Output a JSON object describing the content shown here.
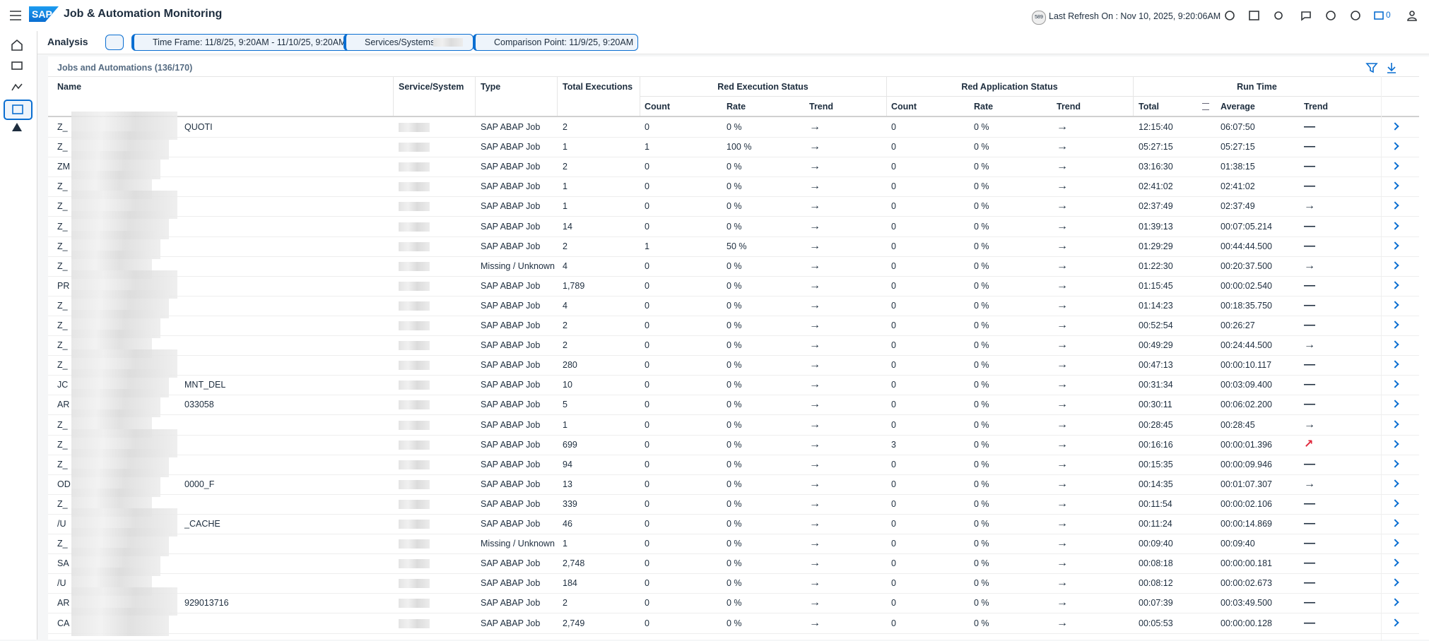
{
  "header": {
    "logo": "SAP",
    "title": "Job & Automation Monitoring",
    "badge": "589",
    "last_refresh": "Last Refresh On : Nov 10, 2025, 9:20:06AM",
    "notifications": "0"
  },
  "filter_bar": {
    "title": "Analysis",
    "tokens": [
      "Time Frame: 11/8/25, 9:20AM - 11/10/25, 9:20AM",
      "Services/Systems:",
      "Comparison Point: 11/9/25, 9:20AM"
    ]
  },
  "table": {
    "title": "Jobs and Automations (136/170)",
    "groups": [
      "Red Execution Status",
      "Red Application Status",
      "Run Time"
    ],
    "columns": [
      "Name",
      "Service/System",
      "Type",
      "Total Executions",
      "Count",
      "Rate",
      "Trend",
      "Count",
      "Rate",
      "Trend",
      "Total",
      "Average",
      "Trend"
    ],
    "rows": [
      {
        "name": "Z_",
        "name_end": "QUOTI",
        "type": "SAP ABAP Job",
        "total": "2",
        "ex_count": "0",
        "ex_rate": "0 %",
        "ex_trend": "→",
        "app_count": "0",
        "app_rate": "0 %",
        "app_trend": "→",
        "rt_total": "12:15:40",
        "rt_avg": "06:07:50",
        "rt_trend": "—"
      },
      {
        "name": "Z_",
        "type": "SAP ABAP Job",
        "total": "1",
        "ex_count": "1",
        "ex_rate": "100 %",
        "ex_trend": "→",
        "app_count": "0",
        "app_rate": "0 %",
        "app_trend": "→",
        "rt_total": "05:27:15",
        "rt_avg": "05:27:15",
        "rt_trend": "—"
      },
      {
        "name": "ZM",
        "type": "SAP ABAP Job",
        "total": "2",
        "ex_count": "0",
        "ex_rate": "0 %",
        "ex_trend": "→",
        "app_count": "0",
        "app_rate": "0 %",
        "app_trend": "→",
        "rt_total": "03:16:30",
        "rt_avg": "01:38:15",
        "rt_trend": "—"
      },
      {
        "name": "Z_",
        "type": "SAP ABAP Job",
        "total": "1",
        "ex_count": "0",
        "ex_rate": "0 %",
        "ex_trend": "→",
        "app_count": "0",
        "app_rate": "0 %",
        "app_trend": "→",
        "rt_total": "02:41:02",
        "rt_avg": "02:41:02",
        "rt_trend": "—"
      },
      {
        "name": "Z_",
        "type": "SAP ABAP Job",
        "total": "1",
        "ex_count": "0",
        "ex_rate": "0 %",
        "ex_trend": "→",
        "app_count": "0",
        "app_rate": "0 %",
        "app_trend": "→",
        "rt_total": "02:37:49",
        "rt_avg": "02:37:49",
        "rt_trend": "→"
      },
      {
        "name": "Z_",
        "type": "SAP ABAP Job",
        "total": "14",
        "ex_count": "0",
        "ex_rate": "0 %",
        "ex_trend": "→",
        "app_count": "0",
        "app_rate": "0 %",
        "app_trend": "→",
        "rt_total": "01:39:13",
        "rt_avg": "00:07:05.214",
        "rt_trend": "—"
      },
      {
        "name": "Z_",
        "type": "SAP ABAP Job",
        "total": "2",
        "ex_count": "1",
        "ex_rate": "50 %",
        "ex_trend": "→",
        "app_count": "0",
        "app_rate": "0 %",
        "app_trend": "→",
        "rt_total": "01:29:29",
        "rt_avg": "00:44:44.500",
        "rt_trend": "—"
      },
      {
        "name": "Z_",
        "type": "Missing / Unknown",
        "total": "4",
        "ex_count": "0",
        "ex_rate": "0 %",
        "ex_trend": "→",
        "app_count": "0",
        "app_rate": "0 %",
        "app_trend": "→",
        "rt_total": "01:22:30",
        "rt_avg": "00:20:37.500",
        "rt_trend": "→"
      },
      {
        "name": "PR",
        "type": "SAP ABAP Job",
        "total": "1,789",
        "ex_count": "0",
        "ex_rate": "0 %",
        "ex_trend": "→",
        "app_count": "0",
        "app_rate": "0 %",
        "app_trend": "→",
        "rt_total": "01:15:45",
        "rt_avg": "00:00:02.540",
        "rt_trend": "—"
      },
      {
        "name": "Z_",
        "type": "SAP ABAP Job",
        "total": "4",
        "ex_count": "0",
        "ex_rate": "0 %",
        "ex_trend": "→",
        "app_count": "0",
        "app_rate": "0 %",
        "app_trend": "→",
        "rt_total": "01:14:23",
        "rt_avg": "00:18:35.750",
        "rt_trend": "—"
      },
      {
        "name": "Z_",
        "type": "SAP ABAP Job",
        "total": "2",
        "ex_count": "0",
        "ex_rate": "0 %",
        "ex_trend": "→",
        "app_count": "0",
        "app_rate": "0 %",
        "app_trend": "→",
        "rt_total": "00:52:54",
        "rt_avg": "00:26:27",
        "rt_trend": "—"
      },
      {
        "name": "Z_",
        "type": "SAP ABAP Job",
        "total": "2",
        "ex_count": "0",
        "ex_rate": "0 %",
        "ex_trend": "→",
        "app_count": "0",
        "app_rate": "0 %",
        "app_trend": "→",
        "rt_total": "00:49:29",
        "rt_avg": "00:24:44.500",
        "rt_trend": "→"
      },
      {
        "name": "Z_",
        "type": "SAP ABAP Job",
        "total": "280",
        "ex_count": "0",
        "ex_rate": "0 %",
        "ex_trend": "→",
        "app_count": "0",
        "app_rate": "0 %",
        "app_trend": "→",
        "rt_total": "00:47:13",
        "rt_avg": "00:00:10.117",
        "rt_trend": "—"
      },
      {
        "name": "JC",
        "name_end": "MNT_DEL",
        "type": "SAP ABAP Job",
        "total": "10",
        "ex_count": "0",
        "ex_rate": "0 %",
        "ex_trend": "→",
        "app_count": "0",
        "app_rate": "0 %",
        "app_trend": "→",
        "rt_total": "00:31:34",
        "rt_avg": "00:03:09.400",
        "rt_trend": "—"
      },
      {
        "name": "AR",
        "name_end": "033058",
        "type": "SAP ABAP Job",
        "total": "5",
        "ex_count": "0",
        "ex_rate": "0 %",
        "ex_trend": "→",
        "app_count": "0",
        "app_rate": "0 %",
        "app_trend": "→",
        "rt_total": "00:30:11",
        "rt_avg": "00:06:02.200",
        "rt_trend": "—"
      },
      {
        "name": "Z_",
        "type": "SAP ABAP Job",
        "total": "1",
        "ex_count": "0",
        "ex_rate": "0 %",
        "ex_trend": "→",
        "app_count": "0",
        "app_rate": "0 %",
        "app_trend": "→",
        "rt_total": "00:28:45",
        "rt_avg": "00:28:45",
        "rt_trend": "→"
      },
      {
        "name": "Z_",
        "type": "SAP ABAP Job",
        "total": "699",
        "ex_count": "0",
        "ex_rate": "0 %",
        "ex_trend": "→",
        "app_count": "3",
        "app_rate": "0 %",
        "app_trend": "→",
        "rt_total": "00:16:16",
        "rt_avg": "00:00:01.396",
        "rt_trend": "↗"
      },
      {
        "name": "Z_",
        "type": "SAP ABAP Job",
        "total": "94",
        "ex_count": "0",
        "ex_rate": "0 %",
        "ex_trend": "→",
        "app_count": "0",
        "app_rate": "0 %",
        "app_trend": "→",
        "rt_total": "00:15:35",
        "rt_avg": "00:00:09.946",
        "rt_trend": "—"
      },
      {
        "name": "OD",
        "name_end": "0000_F",
        "type": "SAP ABAP Job",
        "total": "13",
        "ex_count": "0",
        "ex_rate": "0 %",
        "ex_trend": "→",
        "app_count": "0",
        "app_rate": "0 %",
        "app_trend": "→",
        "rt_total": "00:14:35",
        "rt_avg": "00:01:07.307",
        "rt_trend": "→"
      },
      {
        "name": "Z_",
        "type": "SAP ABAP Job",
        "total": "339",
        "ex_count": "0",
        "ex_rate": "0 %",
        "ex_trend": "→",
        "app_count": "0",
        "app_rate": "0 %",
        "app_trend": "→",
        "rt_total": "00:11:54",
        "rt_avg": "00:00:02.106",
        "rt_trend": "—"
      },
      {
        "name": "/U",
        "name_end": "_CACHE",
        "type": "SAP ABAP Job",
        "total": "46",
        "ex_count": "0",
        "ex_rate": "0 %",
        "ex_trend": "→",
        "app_count": "0",
        "app_rate": "0 %",
        "app_trend": "→",
        "rt_total": "00:11:24",
        "rt_avg": "00:00:14.869",
        "rt_trend": "—"
      },
      {
        "name": "Z_",
        "type": "Missing / Unknown",
        "total": "1",
        "ex_count": "0",
        "ex_rate": "0 %",
        "ex_trend": "→",
        "app_count": "0",
        "app_rate": "0 %",
        "app_trend": "→",
        "rt_total": "00:09:40",
        "rt_avg": "00:09:40",
        "rt_trend": "—"
      },
      {
        "name": "SA",
        "type": "SAP ABAP Job",
        "total": "2,748",
        "ex_count": "0",
        "ex_rate": "0 %",
        "ex_trend": "→",
        "app_count": "0",
        "app_rate": "0 %",
        "app_trend": "→",
        "rt_total": "00:08:18",
        "rt_avg": "00:00:00.181",
        "rt_trend": "—"
      },
      {
        "name": "/U",
        "type": "SAP ABAP Job",
        "total": "184",
        "ex_count": "0",
        "ex_rate": "0 %",
        "ex_trend": "→",
        "app_count": "0",
        "app_rate": "0 %",
        "app_trend": "→",
        "rt_total": "00:08:12",
        "rt_avg": "00:00:02.673",
        "rt_trend": "—"
      },
      {
        "name": "AR",
        "name_end": "929013716",
        "type": "SAP ABAP Job",
        "total": "2",
        "ex_count": "0",
        "ex_rate": "0 %",
        "ex_trend": "→",
        "app_count": "0",
        "app_rate": "0 %",
        "app_trend": "→",
        "rt_total": "00:07:39",
        "rt_avg": "00:03:49.500",
        "rt_trend": "—"
      },
      {
        "name": "CA",
        "type": "SAP ABAP Job",
        "total": "2,749",
        "ex_count": "0",
        "ex_rate": "0 %",
        "ex_trend": "→",
        "app_count": "0",
        "app_rate": "0 %",
        "app_trend": "→",
        "rt_total": "00:05:53",
        "rt_avg": "00:00:00.128",
        "rt_trend": "—"
      }
    ]
  }
}
